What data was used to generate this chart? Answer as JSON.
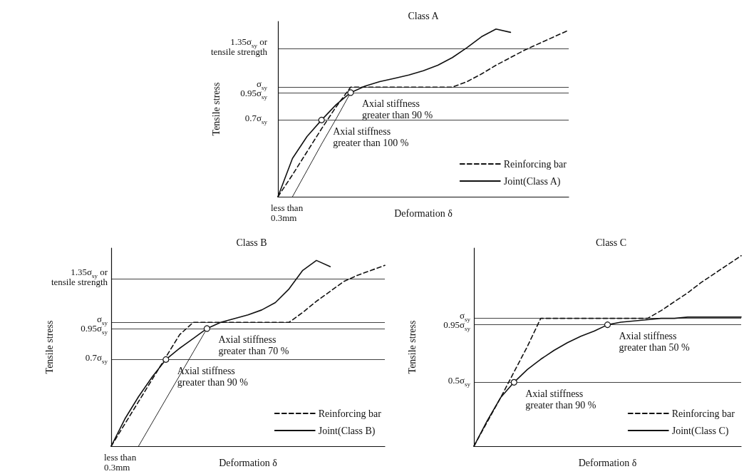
{
  "chart_data": [
    {
      "type": "line",
      "title": "Class A",
      "xlabel": "Deformation δ",
      "ylabel": "Tensile stress",
      "categories": [
        null,
        null,
        null,
        null,
        null,
        null,
        null,
        null,
        null,
        null,
        null,
        null,
        null,
        null,
        null,
        null,
        null,
        null,
        null,
        null,
        null
      ],
      "ylim": [
        0,
        1.6
      ],
      "yticks": [
        {
          "value": 0.7,
          "label": "0.7σ$_{sy}$"
        },
        {
          "value": 0.95,
          "label": "0.95σ$_{sy}$"
        },
        {
          "value": 1,
          "label": "σ$_{sy}$"
        },
        {
          "value": 1.35,
          "label": "1.35σ$_{sy}$ or tensile strength"
        }
      ],
      "tick_labels": "y",
      "grid": false,
      "legend": "bottom right",
      "series": [
        {
          "name": "Reinforcing bar",
          "color": "#111111",
          "line_style": "dashed",
          "marker": "none",
          "values": [
            0,
            0.2,
            0.41,
            0.62,
            0.82,
            1.0,
            1.0,
            1.0,
            1.0,
            1.0,
            1.0,
            1.0,
            1.0,
            1.05,
            1.12,
            1.2,
            1.27,
            1.34,
            1.4,
            1.46,
            1.52
          ]
        },
        {
          "name": "Joint(Class A)",
          "color": "#111111",
          "line_style": "solid",
          "marker": "none",
          "values": [
            0,
            0.35,
            0.55,
            0.7,
            0.84,
            0.95,
            1.01,
            1.05,
            1.08,
            1.11,
            1.15,
            1.2,
            1.27,
            1.36,
            1.46,
            1.53,
            1.5,
            null,
            null,
            null,
            null
          ]
        },
        {
          "color": "#111111",
          "line_style": "solid",
          "marker": "none",
          "values": [
            null,
            0,
            0.24,
            0.48,
            0.71,
            0.95,
            null,
            null,
            null,
            null,
            null,
            null,
            null,
            null,
            null,
            null,
            null,
            null,
            null,
            null,
            null
          ]
        },
        {
          "type": "scatter",
          "color": "#111111",
          "marker": "circle",
          "values": [
            null,
            null,
            null,
            0.7,
            null,
            0.95,
            null,
            null,
            null,
            null,
            null,
            null,
            null,
            null,
            null,
            null,
            null,
            null,
            null,
            null,
            null
          ]
        }
      ],
      "ref_lines": [
        {
          "axis": "y",
          "value": 1.35,
          "color": "#111111"
        },
        {
          "axis": "y",
          "value": 1,
          "color": "#111111"
        },
        {
          "axis": "y",
          "value": 0.95,
          "color": "#111111"
        },
        {
          "axis": "y",
          "value": 0.7,
          "color": "#111111"
        }
      ],
      "annotations": [
        {
          "text": "Axial stiffness greater than 90 %",
          "y": 0.95
        },
        {
          "text": "Axial stiffness greater than 100 %",
          "y": 0.7
        },
        "less than 0.3mm"
      ]
    },
    {
      "type": "line",
      "title": "Class B",
      "xlabel": "Deformation δ",
      "ylabel": "Tensile stress",
      "categories": [
        null,
        null,
        null,
        null,
        null,
        null,
        null,
        null,
        null,
        null,
        null,
        null,
        null,
        null,
        null,
        null,
        null,
        null,
        null,
        null,
        null
      ],
      "ylim": [
        0,
        1.6
      ],
      "yticks": [
        {
          "value": 0.7,
          "label": "0.7σ$_{sy}$"
        },
        {
          "value": 0.95,
          "label": "0.95σ$_{sy}$"
        },
        {
          "value": 1,
          "label": "σ$_{sy}$"
        },
        {
          "value": 1.35,
          "label": "1.35σ$_{sy}$ or tensile strength"
        }
      ],
      "tick_labels": "y",
      "grid": false,
      "legend": "bottom right",
      "series": [
        {
          "name": "Reinforcing bar",
          "color": "#111111",
          "line_style": "dashed",
          "marker": "none",
          "values": [
            0,
            0.18,
            0.36,
            0.54,
            0.72,
            0.9,
            1.0,
            1.0,
            1.0,
            1.0,
            1.0,
            1.0,
            1.0,
            1.0,
            1.08,
            1.17,
            1.25,
            1.33,
            1.38,
            1.42,
            1.46
          ]
        },
        {
          "name": "Joint(Class B)",
          "color": "#111111",
          "line_style": "solid",
          "marker": "none",
          "values": [
            0,
            0.22,
            0.4,
            0.56,
            0.7,
            0.79,
            0.87,
            0.95,
            1.0,
            1.03,
            1.06,
            1.1,
            1.16,
            1.27,
            1.42,
            1.5,
            1.45,
            null,
            null,
            null,
            null
          ]
        },
        {
          "color": "#111111",
          "line_style": "solid",
          "marker": "none",
          "values": [
            null,
            null,
            0,
            0.19,
            0.38,
            0.57,
            0.76,
            0.95,
            null,
            null,
            null,
            null,
            null,
            null,
            null,
            null,
            null,
            null,
            null,
            null,
            null
          ]
        },
        {
          "type": "scatter",
          "color": "#111111",
          "marker": "circle",
          "values": [
            null,
            null,
            null,
            null,
            0.7,
            null,
            null,
            0.95,
            null,
            null,
            null,
            null,
            null,
            null,
            null,
            null,
            null,
            null,
            null,
            null,
            null
          ]
        }
      ],
      "ref_lines": [
        {
          "axis": "y",
          "value": 1.35,
          "color": "#111111"
        },
        {
          "axis": "y",
          "value": 1,
          "color": "#111111"
        },
        {
          "axis": "y",
          "value": 0.95,
          "color": "#111111"
        },
        {
          "axis": "y",
          "value": 0.7,
          "color": "#111111"
        }
      ],
      "annotations": [
        {
          "text": "Axial stiffness greater than 70 %",
          "y": 0.95
        },
        {
          "text": "Axial stiffness greater than 90 %",
          "y": 0.7
        },
        "less than 0.3mm"
      ]
    },
    {
      "type": "line",
      "title": "Class C",
      "xlabel": "Deformation δ",
      "ylabel": "Tensile stress",
      "categories": [
        null,
        null,
        null,
        null,
        null,
        null,
        null,
        null,
        null,
        null,
        null,
        null,
        null,
        null,
        null,
        null,
        null,
        null,
        null,
        null,
        null
      ],
      "ylim": [
        0,
        1.55
      ],
      "yticks": [
        {
          "value": 0.5,
          "label": "0.5σ$_{sy}$"
        },
        {
          "value": 0.95,
          "label": "0.95σ$_{sy}$"
        },
        {
          "value": 1,
          "label": "σ$_{sy}$"
        }
      ],
      "tick_labels": "y",
      "grid": false,
      "legend": "bottom right",
      "series": [
        {
          "name": "Reinforcing bar",
          "color": "#111111",
          "line_style": "dashed",
          "marker": "none",
          "values": [
            0,
            0.19,
            0.38,
            0.58,
            0.78,
            1.0,
            1.0,
            1.0,
            1.0,
            1.0,
            1.0,
            1.0,
            1.0,
            1.0,
            1.06,
            1.13,
            1.2,
            1.28,
            1.35,
            1.42,
            1.49
          ]
        },
        {
          "name": "Joint(Class C)",
          "color": "#111111",
          "line_style": "solid",
          "marker": "none",
          "values": [
            0,
            0.2,
            0.38,
            0.5,
            0.6,
            0.68,
            0.75,
            0.81,
            0.86,
            0.9,
            0.95,
            0.97,
            0.98,
            0.99,
            1.0,
            1.0,
            1.01,
            1.01,
            1.01,
            1.01,
            1.01
          ]
        },
        {
          "type": "scatter",
          "color": "#111111",
          "marker": "circle",
          "values": [
            null,
            null,
            null,
            0.5,
            null,
            null,
            null,
            null,
            null,
            null,
            0.95,
            null,
            null,
            null,
            null,
            null,
            null,
            null,
            null,
            null,
            null
          ]
        }
      ],
      "ref_lines": [
        {
          "axis": "y",
          "value": 1,
          "color": "#111111"
        },
        {
          "axis": "y",
          "value": 0.95,
          "color": "#111111"
        },
        {
          "axis": "y",
          "value": 0.5,
          "color": "#111111"
        }
      ],
      "annotations": [
        {
          "text": "Axial stiffness greater than 50 %",
          "y": 0.95
        },
        {
          "text": "Axial stiffness greater than 90 %",
          "y": 0.5
        }
      ]
    }
  ]
}
